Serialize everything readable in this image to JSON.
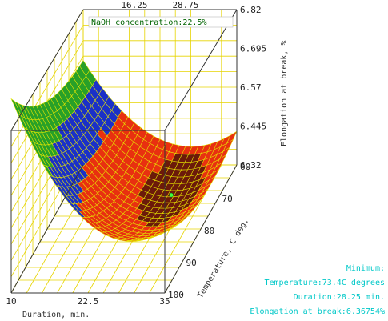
{
  "chart_data": {
    "type": "surface3d",
    "title": "NaOH concentration:22.5%",
    "xlabel": "Duration, min.",
    "ylabel": "Temperature, C deg.",
    "zlabel": "Elongation at break, %",
    "x_ticks": [
      "10",
      "22.5",
      "35"
    ],
    "x_top_ticks": [
      "16.25",
      "28.75"
    ],
    "y_ticks": [
      "60",
      "70",
      "80",
      "90",
      "100"
    ],
    "z_ticks": [
      "6.82",
      "6.695",
      "6.57",
      "6.445",
      "6.32"
    ],
    "xlim": [
      10,
      35
    ],
    "ylim": [
      60,
      100
    ],
    "zlim": [
      6.32,
      6.82
    ],
    "minimum_point": {
      "duration": 28.25,
      "temperature": 73.4,
      "elongation": 6.36754
    },
    "colors": {
      "box_grid": "#e6d400",
      "surface_mesh": "#e6e600",
      "low_zone": "#6b1a0a",
      "mid_zone": "#e83010",
      "high_zone": "#1a30c8",
      "edge_zone": "#28a028",
      "minimum_marker": "#40ff40",
      "title": "#006400",
      "info_text": "#00c8c8"
    }
  },
  "info": {
    "heading": "Minimum:",
    "temperature": "Temperature:73.4C degrees",
    "duration": "Duration:28.25 min.",
    "elongation": "Elongation at break:6.36754%"
  }
}
